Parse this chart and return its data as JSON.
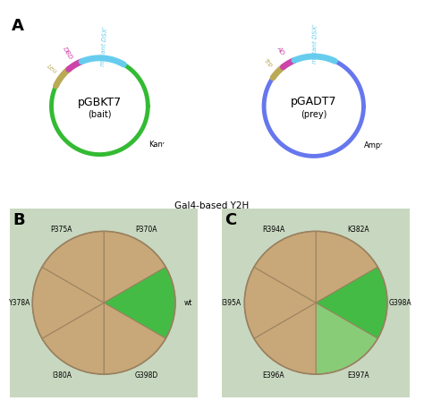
{
  "fig_width": 4.74,
  "fig_height": 4.48,
  "bg_color": "#ffffff",
  "plasmid1_name": "pGBKT7",
  "plasmid1_sub": "(bait)",
  "plasmid1_color": "#33bb33",
  "plasmid1_res": "Kanʳ",
  "plasmid1_DBD_color": "#cc44aa",
  "plasmid1_DBD_label": "DBD",
  "plasmid1_DSX_color": "#66ccee",
  "plasmid1_DSX_label": "mutant DSXʳ",
  "plasmid1_Leu_color": "#bbaa55",
  "plasmid1_Leu_label": "Leu",
  "plasmid2_name": "pGADT7",
  "plasmid2_sub": "(prey)",
  "plasmid2_color": "#6677ee",
  "plasmid2_res": "Ampʳ",
  "plasmid2_AD_color": "#cc44aa",
  "plasmid2_AD_label": "AD",
  "plasmid2_DSX_color": "#66ccee",
  "plasmid2_DSX_label": "mutant DSXʳ",
  "plasmid2_Trp_color": "#bbaa55",
  "plasmid2_Trp_label": "Trp",
  "gal4_label": "Gal4-based Y2H",
  "plate_bg": "#c8a878",
  "plate_panel_bg_B": "#c8d8c0",
  "plate_panel_bg_C": "#c8d8c0",
  "B_labels": [
    "P370A",
    "wt",
    "G398D",
    "I380A",
    "Y378A",
    "P375A"
  ],
  "B_green_sectors": [
    1
  ],
  "C_labels": [
    "K382A",
    "G398A",
    "E397A",
    "E396A",
    "I395A",
    "R394A"
  ],
  "C_green_sectors": [
    1,
    2
  ],
  "C_light_green_sectors": [
    2
  ]
}
